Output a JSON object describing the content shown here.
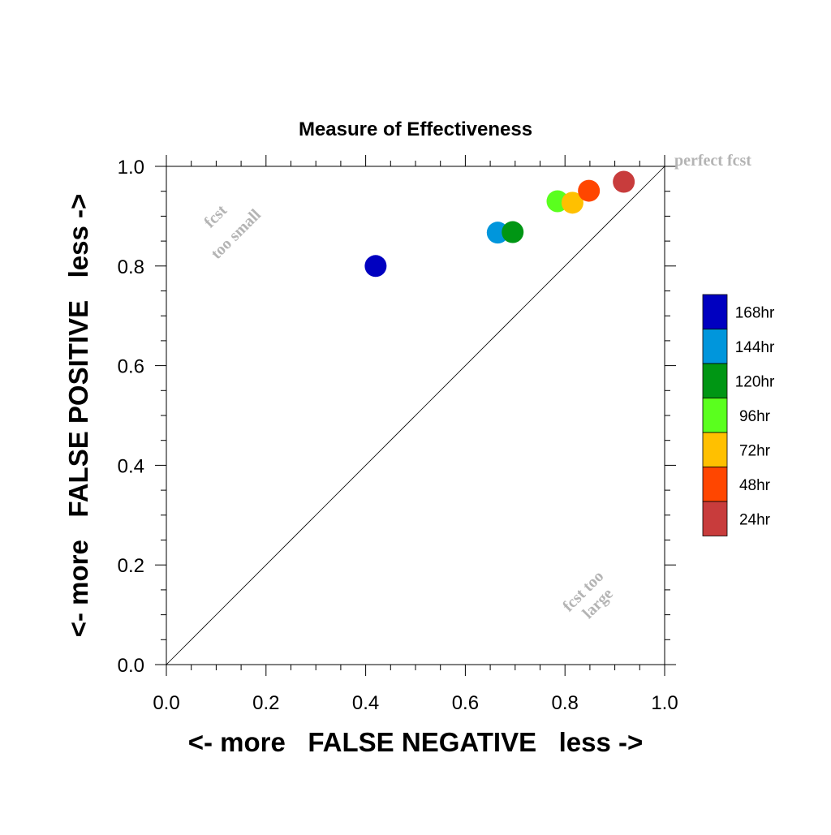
{
  "chart_data": {
    "type": "scatter",
    "title": "Measure of Effectiveness",
    "xlabel": "<- more   FALSE NEGATIVE   less ->",
    "ylabel": "<- more   FALSE POSITIVE   less ->",
    "xlim": [
      0.0,
      1.0
    ],
    "ylim": [
      0.0,
      1.0
    ],
    "xticks": [
      "0.0",
      "0.2",
      "0.4",
      "0.6",
      "0.8",
      "1.0"
    ],
    "yticks": [
      "0.0",
      "0.2",
      "0.4",
      "0.6",
      "0.8",
      "1.0"
    ],
    "grid": false,
    "diagonal_reference_line": true,
    "legend_position": "right",
    "points": [
      {
        "label": "168hr",
        "x": 0.42,
        "y": 0.8,
        "color": "#0000c0"
      },
      {
        "label": "144hr",
        "x": 0.665,
        "y": 0.867,
        "color": "#0096dc"
      },
      {
        "label": "120hr",
        "x": 0.695,
        "y": 0.868,
        "color": "#009614"
      },
      {
        "label": "96hr",
        "x": 0.785,
        "y": 0.93,
        "color": "#5aff1e"
      },
      {
        "label": "72hr",
        "x": 0.815,
        "y": 0.927,
        "color": "#ffc000"
      },
      {
        "label": "48hr",
        "x": 0.848,
        "y": 0.951,
        "color": "#ff4600"
      },
      {
        "label": "24hr",
        "x": 0.918,
        "y": 0.969,
        "color": "#c83c3c"
      }
    ],
    "legend": [
      {
        "label": "168hr",
        "color": "#0000c0"
      },
      {
        "label": "144hr",
        "color": "#0096dc"
      },
      {
        "label": "120hr",
        "color": "#009614"
      },
      {
        "label": "96hr",
        "color": "#5aff1e"
      },
      {
        "label": "72hr",
        "color": "#ffc000"
      },
      {
        "label": "48hr",
        "color": "#ff4600"
      },
      {
        "label": "24hr",
        "color": "#c83c3c"
      }
    ],
    "annotations": {
      "perfect": "perfect fcst",
      "too_small": [
        "fcst",
        "too small"
      ],
      "too_large": [
        "fcst too",
        "large"
      ],
      "color": "#b4b4b4"
    }
  }
}
